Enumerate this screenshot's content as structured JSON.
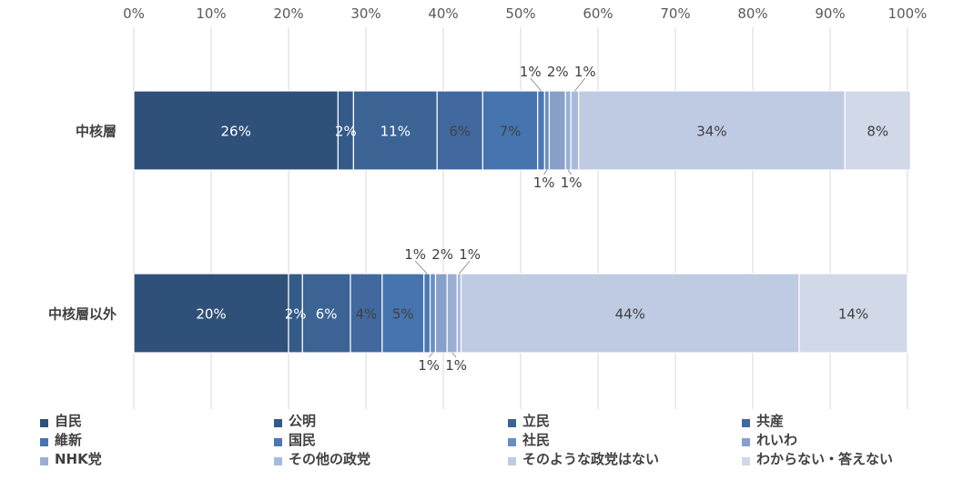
{
  "chart_data": {
    "type": "bar",
    "orientation": "horizontal",
    "stacked": true,
    "percent": true,
    "xlim": [
      0,
      100
    ],
    "x_ticks": [
      "0%",
      "10%",
      "20%",
      "30%",
      "40%",
      "50%",
      "60%",
      "70%",
      "80%",
      "90%",
      "100%"
    ],
    "grid": true,
    "legend_position": "bottom",
    "categories": [
      "中核層",
      "中核層以外"
    ],
    "series": [
      {
        "name": "自民",
        "color": "#2f5078",
        "values": [
          26.4,
          20.0
        ],
        "labels": [
          "26%",
          "20%"
        ]
      },
      {
        "name": "公明",
        "color": "#345a87",
        "values": [
          2.0,
          1.8
        ],
        "labels": [
          "2%",
          "2%"
        ]
      },
      {
        "name": "立民",
        "color": "#3b6394",
        "values": [
          10.8,
          6.2
        ],
        "labels": [
          "11%",
          "6%"
        ]
      },
      {
        "name": "共産",
        "color": "#41699f",
        "values": [
          5.9,
          4.1
        ],
        "labels": [
          "6%",
          "4%"
        ]
      },
      {
        "name": "維新",
        "color": "#4674ae",
        "values": [
          7.1,
          5.4
        ],
        "labels": [
          "7%",
          "5%"
        ]
      },
      {
        "name": "国民",
        "color": "#4a78b3",
        "values": [
          0.9,
          0.8
        ],
        "labels": [
          "1%",
          "1%"
        ]
      },
      {
        "name": "社民",
        "color": "#6a8fc4",
        "values": [
          0.6,
          0.7
        ],
        "labels": [
          "1%",
          "1%"
        ]
      },
      {
        "name": "れいわ",
        "color": "#87a0c9",
        "values": [
          2.1,
          1.5
        ],
        "labels": [
          "2%",
          "2%"
        ]
      },
      {
        "name": "NHK党",
        "color": "#9aafd3",
        "values": [
          0.7,
          1.3
        ],
        "labels": [
          "1%",
          "1%"
        ]
      },
      {
        "name": "その他の政党",
        "color": "#a8b9dc",
        "values": [
          1.0,
          0.5
        ],
        "labels": [
          "1%",
          "1%"
        ]
      },
      {
        "name": "そのような政党はない",
        "color": "#bfcbe2",
        "values": [
          34.4,
          43.7
        ],
        "labels": [
          "34%",
          "44%"
        ]
      },
      {
        "name": "わからない・答えない",
        "color": "#d1d8e7",
        "values": [
          8.5,
          14.0
        ],
        "labels": [
          "8%",
          "14%"
        ]
      }
    ]
  }
}
